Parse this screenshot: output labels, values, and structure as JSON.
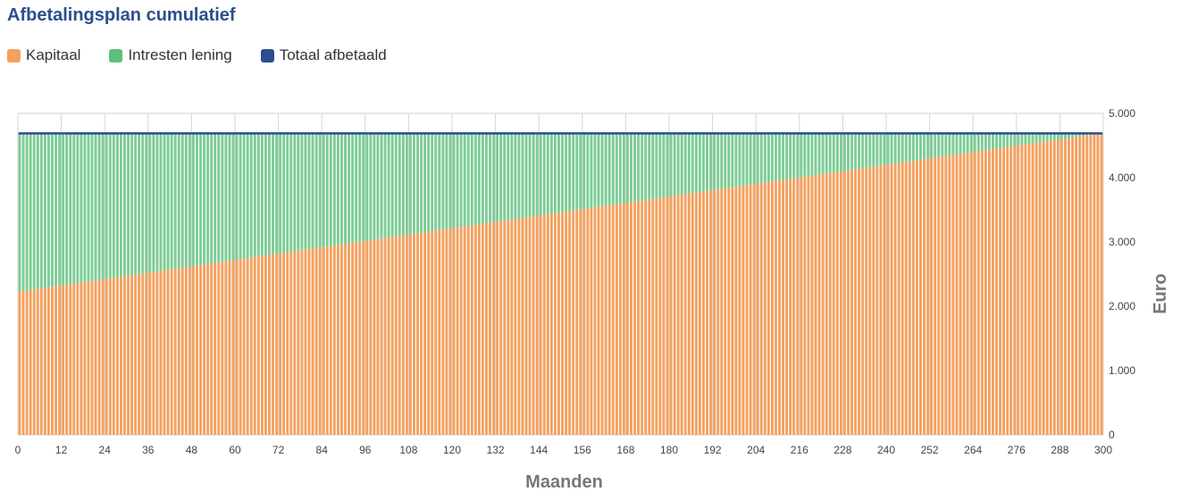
{
  "title": "Afbetalingsplan cumulatief",
  "chart_data": {
    "type": "bar",
    "stacked": true,
    "xlabel": "Maanden",
    "ylabel": "Euro",
    "x_range": [
      0,
      300
    ],
    "ylim": [
      0,
      5000
    ],
    "x_ticks": [
      "0",
      "12",
      "24",
      "36",
      "48",
      "60",
      "72",
      "84",
      "96",
      "108",
      "120",
      "132",
      "144",
      "156",
      "168",
      "180",
      "192",
      "204",
      "216",
      "228",
      "240",
      "252",
      "264",
      "276",
      "288",
      "300"
    ],
    "y_ticks": [
      "0",
      "1.000",
      "2.000",
      "3.000",
      "4.000",
      "5.000"
    ],
    "y_axis_position": "right",
    "grid": true,
    "legend_position": "top-left",
    "series": [
      {
        "name": "Kapitaal",
        "color": "#f5a15f",
        "start_value": 2230,
        "end_value": 4690
      },
      {
        "name": "Intresten lening",
        "color": "#5cbf7a",
        "start_value": 2460,
        "end_value": 0
      },
      {
        "name": "Totaal afbetaald",
        "color": "#2b4e8c",
        "constant_value": 4690
      }
    ]
  }
}
